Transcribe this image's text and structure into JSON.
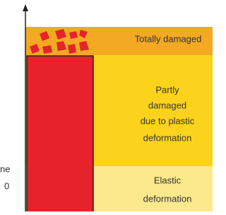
{
  "bands": [
    {
      "lines": [
        "Totally damaged"
      ]
    },
    {
      "lines": [
        "Partly",
        "damaged",
        "due to plastic",
        "deformation"
      ]
    },
    {
      "lines": [
        "Elastic",
        "deformation"
      ]
    }
  ],
  "axis_labels": [
    "ne",
    "0"
  ]
}
